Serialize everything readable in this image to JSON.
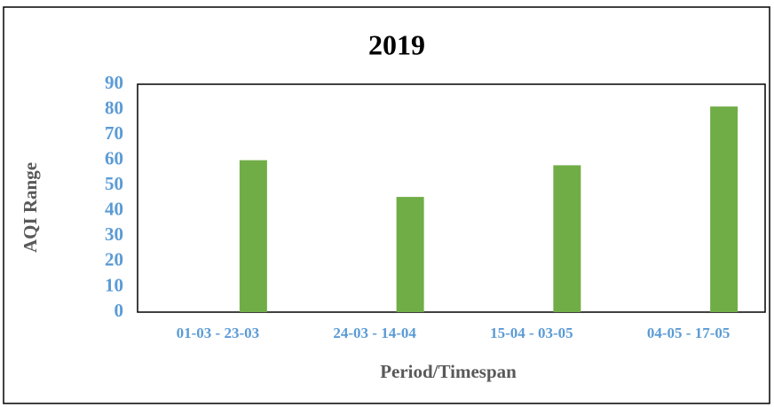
{
  "chart_data": {
    "type": "bar",
    "title": "2019",
    "categories": [
      "01-03 - 23-03",
      "24-03 - 14-04",
      "15-04 - 03-05",
      "04-05 - 17-05"
    ],
    "values": [
      60,
      45.5,
      58,
      81.2
    ],
    "color": "#70ad47",
    "xlabel": "Period/Timespan",
    "ylabel": "AQI Range",
    "ylim": [
      0,
      90
    ],
    "yticks": [
      0,
      10,
      20,
      30,
      40,
      50,
      60,
      70,
      80,
      90
    ],
    "grid": false
  }
}
